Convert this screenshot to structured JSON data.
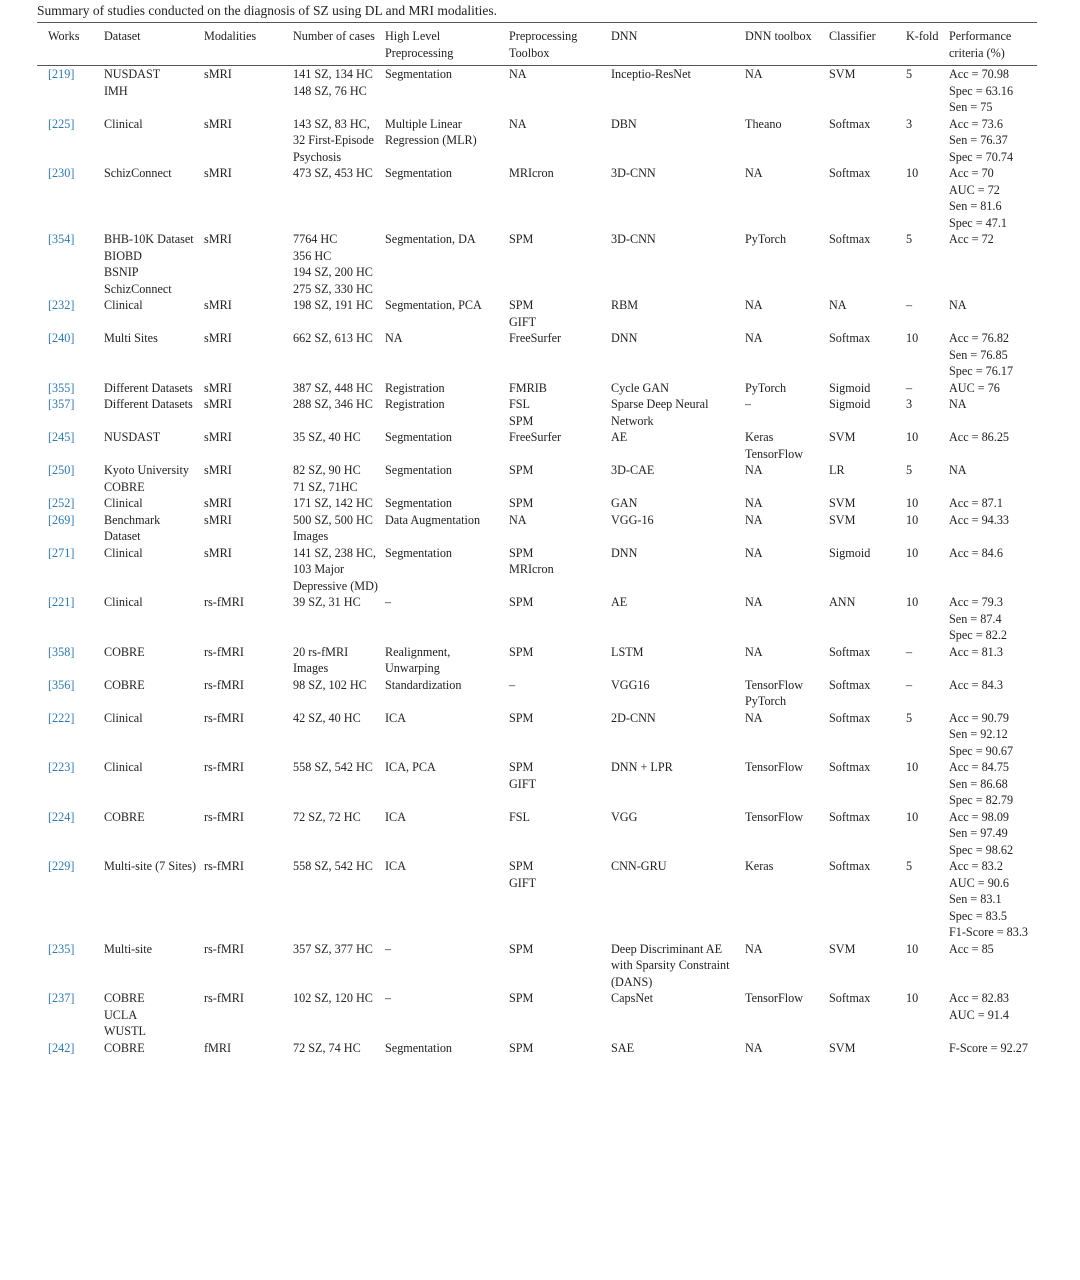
{
  "title": "Summary of studies conducted on the diagnosis of SZ using DL and MRI modalities.",
  "table": {
    "headers": [
      "Works",
      "Dataset",
      "Modalities",
      "Number of cases",
      "High Level Preprocessing",
      "Preprocessing Toolbox",
      "DNN",
      "DNN toolbox",
      "Classifier",
      "K-fold",
      "Performance criteria (%)"
    ],
    "rows": [
      [
        [
          "[219]"
        ],
        [
          "NUSDAST",
          "IMH"
        ],
        [
          "sMRI"
        ],
        [
          "141 SZ, 134 HC",
          "148 SZ, 76 HC"
        ],
        [
          "Segmentation"
        ],
        [
          "NA"
        ],
        [
          "Inceptio-ResNet"
        ],
        [
          "NA"
        ],
        [
          "SVM"
        ],
        [
          "5"
        ],
        [
          "Acc = 70.98",
          "Spec = 63.16",
          "Sen = 75"
        ]
      ],
      [
        [
          "[225]"
        ],
        [
          "Clinical"
        ],
        [
          "sMRI"
        ],
        [
          "143 SZ, 83 HC, 32 First-Episode Psychosis"
        ],
        [
          "Multiple Linear Regression (MLR)"
        ],
        [
          "NA"
        ],
        [
          "DBN"
        ],
        [
          "Theano"
        ],
        [
          "Softmax"
        ],
        [
          "3"
        ],
        [
          "Acc = 73.6",
          "Sen = 76.37",
          "Spec = 70.74"
        ]
      ],
      [
        [
          "[230]"
        ],
        [
          "SchizConnect"
        ],
        [
          "sMRI"
        ],
        [
          "473 SZ, 453 HC"
        ],
        [
          "Segmentation"
        ],
        [
          "MRIcron"
        ],
        [
          "3D-CNN"
        ],
        [
          "NA"
        ],
        [
          "Softmax"
        ],
        [
          "10"
        ],
        [
          "Acc = 70",
          "AUC = 72",
          "Sen = 81.6",
          "Spec = 47.1"
        ]
      ],
      [
        [
          "[354]"
        ],
        [
          "BHB-10K Dataset",
          "BIOBD",
          "BSNIP",
          "SchizConnect"
        ],
        [
          "sMRI"
        ],
        [
          "7764 HC",
          "356 HC",
          "194 SZ, 200 HC",
          "275 SZ, 330 HC"
        ],
        [
          "Segmentation, DA"
        ],
        [
          "SPM"
        ],
        [
          "3D-CNN"
        ],
        [
          "PyTorch"
        ],
        [
          "Softmax"
        ],
        [
          "5"
        ],
        [
          "Acc = 72"
        ]
      ],
      [
        [
          "[232]"
        ],
        [
          "Clinical"
        ],
        [
          "sMRI"
        ],
        [
          "198 SZ, 191 HC"
        ],
        [
          "Segmentation, PCA"
        ],
        [
          "SPM",
          "GIFT"
        ],
        [
          "RBM"
        ],
        [
          "NA"
        ],
        [
          "NA"
        ],
        [
          "–"
        ],
        [
          "NA"
        ]
      ],
      [
        [
          "[240]"
        ],
        [
          "Multi Sites"
        ],
        [
          "sMRI"
        ],
        [
          "662 SZ, 613 HC"
        ],
        [
          "NA"
        ],
        [
          "FreeSurfer"
        ],
        [
          "DNN"
        ],
        [
          "NA"
        ],
        [
          "Softmax"
        ],
        [
          "10"
        ],
        [
          "Acc = 76.82",
          "Sen = 76.85",
          "Spec = 76.17"
        ]
      ],
      [
        [
          "[355]"
        ],
        [
          "Different Datasets"
        ],
        [
          "sMRI"
        ],
        [
          "387 SZ, 448 HC"
        ],
        [
          "Registration"
        ],
        [
          "FMRIB"
        ],
        [
          "Cycle GAN"
        ],
        [
          "PyTorch"
        ],
        [
          "Sigmoid"
        ],
        [
          "–"
        ],
        [
          "AUC = 76"
        ]
      ],
      [
        [
          "[357]"
        ],
        [
          "Different Datasets"
        ],
        [
          "sMRI"
        ],
        [
          "288 SZ, 346 HC"
        ],
        [
          "Registration"
        ],
        [
          "FSL",
          "SPM"
        ],
        [
          "Sparse Deep Neural Network"
        ],
        [
          "–"
        ],
        [
          "Sigmoid"
        ],
        [
          "3"
        ],
        [
          "NA"
        ]
      ],
      [
        [
          "[245]"
        ],
        [
          "NUSDAST"
        ],
        [
          "sMRI"
        ],
        [
          "35 SZ, 40 HC"
        ],
        [
          "Segmentation"
        ],
        [
          "FreeSurfer"
        ],
        [
          "AE"
        ],
        [
          "Keras",
          "TensorFlow"
        ],
        [
          "SVM"
        ],
        [
          "10"
        ],
        [
          "Acc = 86.25"
        ]
      ],
      [
        [
          "[250]"
        ],
        [
          "Kyoto University",
          "COBRE"
        ],
        [
          "sMRI"
        ],
        [
          "82 SZ, 90 HC",
          "71 SZ, 71HC"
        ],
        [
          "Segmentation"
        ],
        [
          "SPM"
        ],
        [
          "3D-CAE"
        ],
        [
          "NA"
        ],
        [
          "LR"
        ],
        [
          "5"
        ],
        [
          "NA"
        ]
      ],
      [
        [
          "[252]"
        ],
        [
          "Clinical"
        ],
        [
          "sMRI"
        ],
        [
          "171 SZ, 142 HC"
        ],
        [
          "Segmentation"
        ],
        [
          "SPM"
        ],
        [
          "GAN"
        ],
        [
          "NA"
        ],
        [
          "SVM"
        ],
        [
          "10"
        ],
        [
          "Acc = 87.1"
        ]
      ],
      [
        [
          "[269]"
        ],
        [
          "Benchmark Dataset"
        ],
        [
          "sMRI"
        ],
        [
          "500 SZ, 500 HC Images"
        ],
        [
          "Data Augmentation"
        ],
        [
          "NA"
        ],
        [
          "VGG-16"
        ],
        [
          "NA"
        ],
        [
          "SVM"
        ],
        [
          "10"
        ],
        [
          "Acc = 94.33"
        ]
      ],
      [
        [
          "[271]"
        ],
        [
          "Clinical"
        ],
        [
          "sMRI"
        ],
        [
          "141 SZ, 238 HC, 103 Major Depressive (MD)"
        ],
        [
          "Segmentation"
        ],
        [
          "SPM",
          "MRIcron"
        ],
        [
          "DNN"
        ],
        [
          "NA"
        ],
        [
          "Sigmoid"
        ],
        [
          "10"
        ],
        [
          "Acc = 84.6"
        ]
      ],
      [
        [
          "[221]"
        ],
        [
          "Clinical"
        ],
        [
          "rs-fMRI"
        ],
        [
          "39 SZ, 31 HC"
        ],
        [
          "–"
        ],
        [
          "SPM"
        ],
        [
          "AE"
        ],
        [
          "NA"
        ],
        [
          "ANN"
        ],
        [
          "10"
        ],
        [
          "Acc = 79.3",
          "Sen = 87.4",
          "Spec = 82.2"
        ]
      ],
      [
        [
          "[358]"
        ],
        [
          "COBRE"
        ],
        [
          "rs-fMRI"
        ],
        [
          "20 rs-fMRI Images"
        ],
        [
          "Realignment, Unwarping"
        ],
        [
          "SPM"
        ],
        [
          "LSTM"
        ],
        [
          "NA"
        ],
        [
          "Softmax"
        ],
        [
          "–"
        ],
        [
          "Acc = 81.3"
        ]
      ],
      [
        [
          "[356]"
        ],
        [
          "COBRE"
        ],
        [
          "rs-fMRI"
        ],
        [
          "98 SZ, 102 HC"
        ],
        [
          "Standardization"
        ],
        [
          "–"
        ],
        [
          "VGG16"
        ],
        [
          "TensorFlow",
          "PyTorch"
        ],
        [
          "Softmax"
        ],
        [
          "–"
        ],
        [
          "Acc = 84.3"
        ]
      ],
      [
        [
          "[222]"
        ],
        [
          "Clinical"
        ],
        [
          "rs-fMRI"
        ],
        [
          "42 SZ, 40 HC"
        ],
        [
          "ICA"
        ],
        [
          "SPM"
        ],
        [
          "2D-CNN"
        ],
        [
          "NA"
        ],
        [
          "Softmax"
        ],
        [
          "5"
        ],
        [
          "Acc = 90.79",
          "Sen = 92.12",
          "Spec = 90.67"
        ]
      ],
      [
        [
          "[223]"
        ],
        [
          "Clinical"
        ],
        [
          "rs-fMRI"
        ],
        [
          "558 SZ, 542 HC"
        ],
        [
          "ICA, PCA"
        ],
        [
          "SPM",
          "GIFT"
        ],
        [
          "DNN + LPR"
        ],
        [
          "TensorFlow"
        ],
        [
          "Softmax"
        ],
        [
          "10"
        ],
        [
          "Acc = 84.75",
          "Sen = 86.68",
          "Spec = 82.79"
        ]
      ],
      [
        [
          "[224]"
        ],
        [
          "COBRE"
        ],
        [
          "rs-fMRI"
        ],
        [
          "72 SZ, 72 HC"
        ],
        [
          "ICA"
        ],
        [
          "FSL"
        ],
        [
          "VGG"
        ],
        [
          "TensorFlow"
        ],
        [
          "Softmax"
        ],
        [
          "10"
        ],
        [
          "Acc = 98.09",
          "Sen = 97.49",
          "Spec = 98.62"
        ]
      ],
      [
        [
          "[229]"
        ],
        [
          "Multi-site (7 Sites)"
        ],
        [
          "rs-fMRI"
        ],
        [
          "558 SZ, 542 HC"
        ],
        [
          "ICA"
        ],
        [
          "SPM",
          "GIFT"
        ],
        [
          "CNN-GRU"
        ],
        [
          "Keras"
        ],
        [
          "Softmax"
        ],
        [
          "5"
        ],
        [
          "Acc = 83.2",
          "AUC = 90.6",
          "Sen = 83.1",
          "Spec = 83.5",
          "F1-Score = 83.3"
        ]
      ],
      [
        [
          "[235]"
        ],
        [
          "Multi-site"
        ],
        [
          "rs-fMRI"
        ],
        [
          "357 SZ, 377 HC"
        ],
        [
          "–"
        ],
        [
          "SPM"
        ],
        [
          "Deep Discriminant AE with Sparsity Constraint (DANS)"
        ],
        [
          "NA"
        ],
        [
          "SVM"
        ],
        [
          "10"
        ],
        [
          "Acc = 85"
        ]
      ],
      [
        [
          "[237]"
        ],
        [
          "COBRE",
          "UCLA",
          "WUSTL"
        ],
        [
          "rs-fMRI"
        ],
        [
          "102 SZ, 120 HC"
        ],
        [
          "–"
        ],
        [
          "SPM"
        ],
        [
          "CapsNet"
        ],
        [
          "TensorFlow"
        ],
        [
          "Softmax"
        ],
        [
          "10"
        ],
        [
          "Acc = 82.83",
          "AUC = 91.4"
        ]
      ],
      [
        [
          "[242]"
        ],
        [
          "COBRE"
        ],
        [
          "fMRI"
        ],
        [
          "72 SZ, 74 HC"
        ],
        [
          "Segmentation"
        ],
        [
          "SPM"
        ],
        [
          "SAE"
        ],
        [
          "NA"
        ],
        [
          "SVM"
        ],
        [],
        [
          "F-Score = 92.27"
        ]
      ]
    ]
  }
}
